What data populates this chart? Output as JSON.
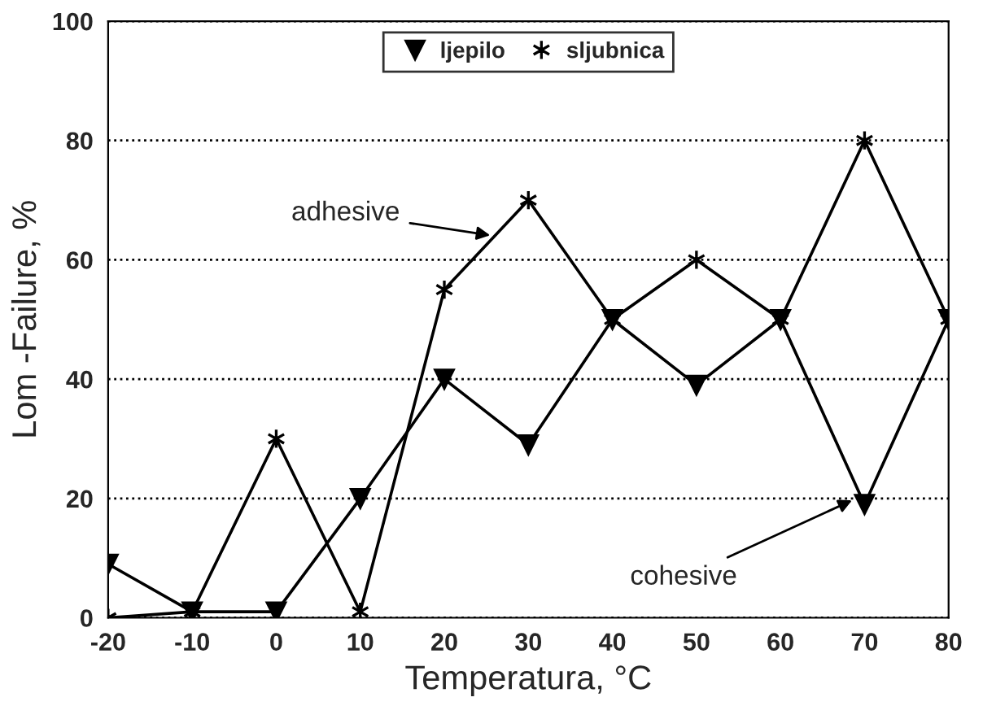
{
  "chart_data": {
    "type": "line",
    "xlabel": "Temperatura, °C",
    "ylabel": "Lom -Failure, %",
    "x": [
      -20,
      -10,
      0,
      10,
      20,
      30,
      40,
      50,
      60,
      70,
      80
    ],
    "series": [
      {
        "name": "ljepilo",
        "color": "#000000",
        "marker": "triangle",
        "values": [
          9,
          1,
          1,
          20,
          40,
          29,
          50,
          39,
          50,
          19,
          50
        ]
      },
      {
        "name": "sljubnica",
        "color": "#000000",
        "marker": "cross",
        "values": [
          0,
          1,
          30,
          1,
          55,
          70,
          50,
          60,
          50,
          80,
          50
        ]
      }
    ],
    "xlim": [
      -20,
      80
    ],
    "xticks": [
      -20,
      -10,
      0,
      10,
      20,
      30,
      40,
      50,
      60,
      70,
      80
    ],
    "ylim": [
      0,
      100
    ],
    "yticks": [
      0,
      20,
      40,
      60,
      80,
      100
    ],
    "grid": "y",
    "legend": "top",
    "line_style": "solid",
    "annotations": [
      {
        "text": "adhesive",
        "x": 26,
        "y": 64
      },
      {
        "text": "cohesive",
        "x": 69,
        "y": 20
      }
    ]
  }
}
